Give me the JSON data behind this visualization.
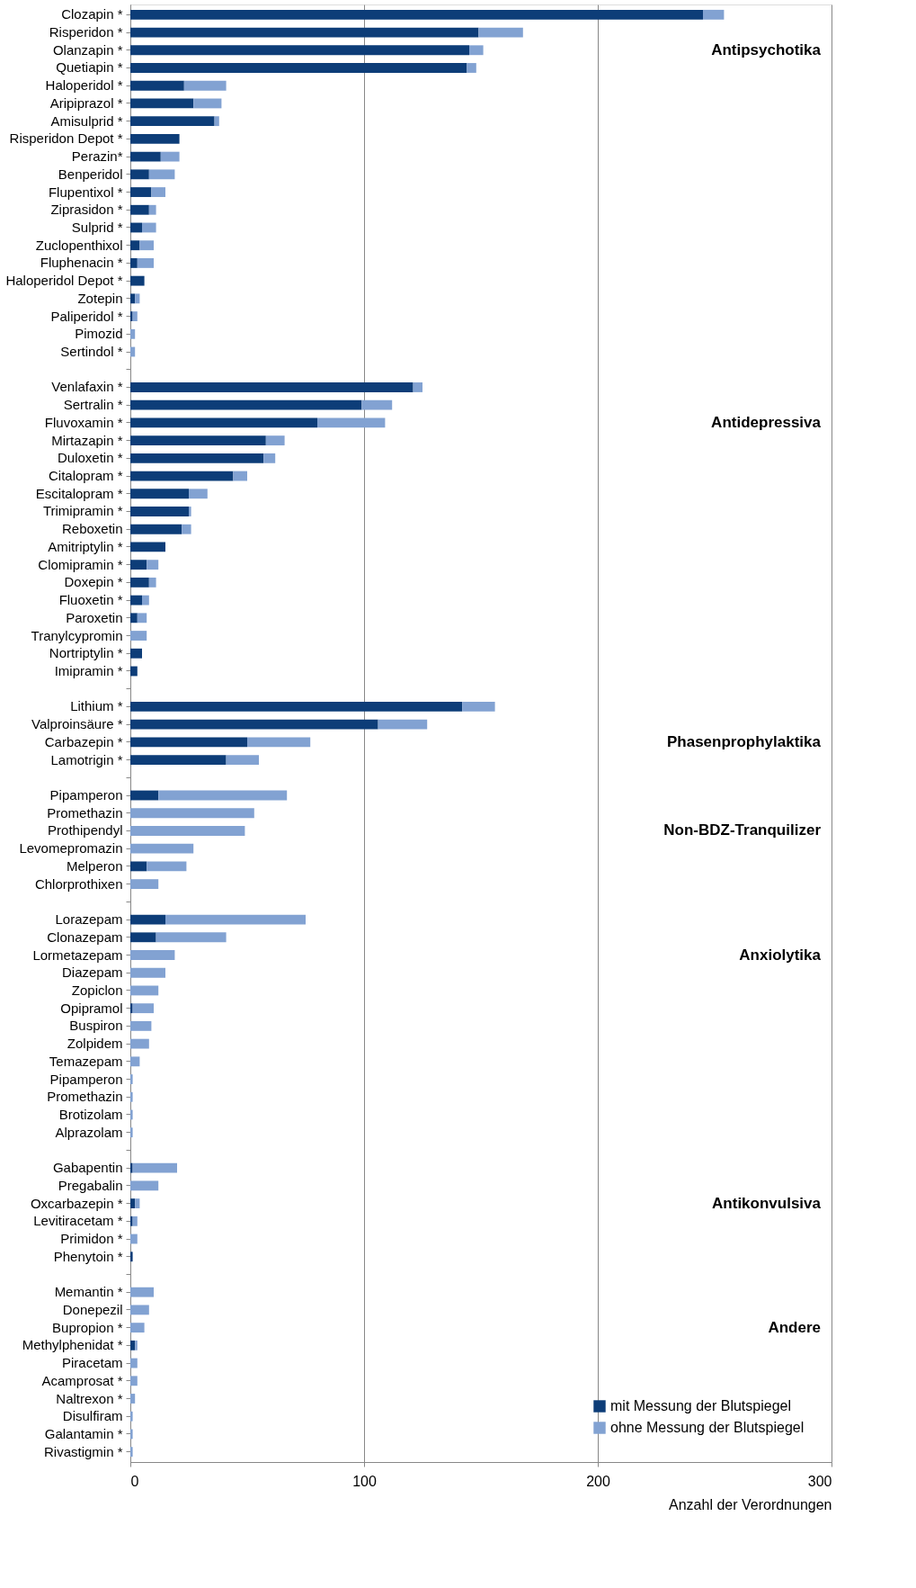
{
  "chart_data": {
    "type": "bar",
    "orientation": "horizontal",
    "stacked": true,
    "categories": [
      "Clozapin *",
      "Risperidon *",
      "Olanzapin *",
      "Quetiapin *",
      "Haloperidol *",
      "Aripiprazol *",
      "Amisulprid *",
      "Risperidon Depot *",
      "Perazin*",
      "Benperidol",
      "Flupentixol *",
      "Ziprasidon *",
      "Sulprid *",
      "Zuclopenthixol",
      "Fluphenacin *",
      "Haloperidol Depot *",
      "Zotepin",
      "Paliperidol *",
      "Pimozid",
      "Sertindol *",
      null,
      "Venlafaxin *",
      "Sertralin *",
      "Fluvoxamin *",
      "Mirtazapin *",
      "Duloxetin *",
      "Citalopram *",
      "Escitalopram *",
      "Trimipramin *",
      "Reboxetin",
      "Amitriptylin *",
      "Clomipramin *",
      "Doxepin *",
      "Fluoxetin *",
      "Paroxetin",
      "Tranylcypromin",
      "Nortriptylin *",
      "Imipramin *",
      null,
      "Lithium *",
      "Valproinsäure *",
      "Carbazepin *",
      "Lamotrigin *",
      null,
      "Pipamperon",
      "Promethazin",
      "Prothipendyl",
      "Levomepromazin",
      "Melperon",
      "Chlorprothixen",
      null,
      "Lorazepam",
      "Clonazepam",
      "Lormetazepam",
      "Diazepam",
      "Zopiclon",
      "Opipramol",
      "Buspiron",
      "Zolpidem",
      "Temazepam",
      "Pipamperon",
      "Promethazin",
      "Brotizolam",
      "Alprazolam",
      null,
      "Gabapentin",
      "Pregabalin",
      "Oxcarbazepin *",
      "Levitiracetam *",
      "Primidon *",
      "Phenytoin *",
      null,
      "Memantin *",
      "Donepezil",
      "Bupropion *",
      "Methylphenidat *",
      "Piracetam",
      "Acamprosat *",
      "Naltrexon *",
      "Disulfiram",
      "Galantamin *",
      "Rivastigmin *"
    ],
    "series": [
      {
        "name": "mit Messung der Blutspiegel",
        "color": "#0d3d78",
        "values": [
          245,
          149,
          145,
          144,
          23,
          27,
          36,
          21,
          13,
          8,
          9,
          8,
          5,
          4,
          3,
          6,
          2,
          1,
          null,
          null,
          null,
          121,
          99,
          80,
          58,
          57,
          44,
          25,
          25,
          22,
          15,
          7,
          8,
          5,
          3,
          null,
          5,
          3,
          null,
          142,
          106,
          50,
          41,
          null,
          12,
          null,
          null,
          null,
          7,
          null,
          null,
          15,
          11,
          null,
          null,
          null,
          1,
          null,
          null,
          null,
          null,
          null,
          null,
          null,
          null,
          1,
          null,
          2,
          1,
          null,
          1,
          null,
          null,
          null,
          null,
          2,
          null,
          null,
          null,
          null,
          null,
          null
        ]
      },
      {
        "name": "ohne Messung der Blutspiegel",
        "color": "#82a2d2",
        "values": [
          9,
          19,
          6,
          4,
          18,
          12,
          2,
          null,
          8,
          11,
          6,
          3,
          6,
          6,
          7,
          null,
          2,
          2,
          2,
          2,
          null,
          4,
          13,
          29,
          8,
          5,
          6,
          8,
          1,
          4,
          null,
          5,
          3,
          3,
          4,
          7,
          null,
          null,
          null,
          14,
          21,
          27,
          14,
          null,
          55,
          53,
          49,
          27,
          17,
          12,
          null,
          60,
          30,
          19,
          15,
          12,
          9,
          9,
          8,
          4,
          1,
          1,
          1,
          1,
          null,
          19,
          12,
          2,
          2,
          3,
          null,
          null,
          10,
          8,
          6,
          1,
          3,
          3,
          2,
          1,
          1,
          1
        ]
      }
    ],
    "xlim": [
      0,
      300
    ],
    "xticks": [
      0,
      100,
      200,
      300
    ],
    "grid": "x",
    "legend": "bottom right",
    "xlabel": "Anzahl der Verordnungen",
    "annotations": [
      "Antipsychotika",
      "Antidepressiva",
      "Phasenprophylaktika",
      "Non-BDZ-Tranquilizer",
      "Anxiolytika",
      "Antikonvulsiva",
      "Andere"
    ]
  }
}
